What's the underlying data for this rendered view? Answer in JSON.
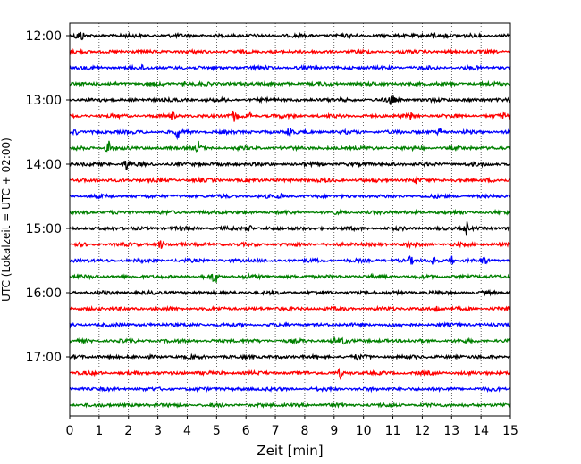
{
  "chart_data": {
    "type": "line",
    "title": "",
    "xlabel": "Zeit  [min]",
    "ylabel": "UTC (Lokalzeit = UTC + 02:00)",
    "xlim": [
      0,
      15
    ],
    "x_ticks": [
      "0",
      "1",
      "2",
      "3",
      "4",
      "5",
      "6",
      "7",
      "8",
      "9",
      "10",
      "11",
      "12",
      "13",
      "14",
      "15"
    ],
    "hour_labels": [
      "12:00",
      "13:00",
      "14:00",
      "15:00",
      "16:00",
      "17:00"
    ],
    "grid": "vertical-dotted",
    "trace_colors": [
      "#000000",
      "#ff0000",
      "#0000ff",
      "#008000"
    ],
    "row_interval_min": 15,
    "series": [
      {
        "row_start": "12:00",
        "color": "#000000",
        "events": [
          {
            "t": 0.25,
            "amp": 4
          },
          {
            "t": 0.4,
            "amp": 5
          },
          {
            "t": 12.4,
            "amp": 4
          },
          {
            "t": 12.8,
            "amp": 3
          }
        ]
      },
      {
        "row_start": "12:15",
        "color": "#ff0000",
        "events": []
      },
      {
        "row_start": "12:30",
        "color": "#0000ff",
        "events": [
          {
            "t": 2.5,
            "amp": 2
          }
        ]
      },
      {
        "row_start": "12:45",
        "color": "#008000",
        "events": [
          {
            "t": 3.9,
            "amp": 2
          }
        ]
      },
      {
        "row_start": "13:00",
        "color": "#000000",
        "events": [
          {
            "t": 10.9,
            "amp": 4
          },
          {
            "t": 11.0,
            "amp": 3
          }
        ]
      },
      {
        "row_start": "13:15",
        "color": "#ff0000",
        "events": [
          {
            "t": 3.5,
            "amp": 5
          },
          {
            "t": 5.6,
            "amp": 7
          },
          {
            "t": 6.1,
            "amp": 4
          },
          {
            "t": 11.6,
            "amp": 3
          },
          {
            "t": 14.8,
            "amp": 3
          }
        ]
      },
      {
        "row_start": "13:30",
        "color": "#0000ff",
        "events": [
          {
            "t": 0.2,
            "amp": 3
          },
          {
            "t": 3.7,
            "amp": 8
          },
          {
            "t": 7.5,
            "amp": 9
          },
          {
            "t": 12.6,
            "amp": 4
          }
        ]
      },
      {
        "row_start": "13:45",
        "color": "#008000",
        "events": [
          {
            "t": 1.3,
            "amp": 13
          },
          {
            "t": 4.4,
            "amp": 8
          }
        ]
      },
      {
        "row_start": "14:00",
        "color": "#000000",
        "events": [
          {
            "t": 1.9,
            "amp": 5
          },
          {
            "t": 2.0,
            "amp": 4
          }
        ]
      },
      {
        "row_start": "14:15",
        "color": "#ff0000",
        "events": [
          {
            "t": 11.8,
            "amp": 3
          }
        ]
      },
      {
        "row_start": "14:30",
        "color": "#0000ff",
        "events": [
          {
            "t": 7.2,
            "amp": 3
          }
        ]
      },
      {
        "row_start": "14:45",
        "color": "#008000",
        "events": []
      },
      {
        "row_start": "15:00",
        "color": "#000000",
        "events": [
          {
            "t": 6.1,
            "amp": 5
          },
          {
            "t": 13.5,
            "amp": 8
          }
        ]
      },
      {
        "row_start": "15:15",
        "color": "#ff0000",
        "events": [
          {
            "t": 3.1,
            "amp": 5
          },
          {
            "t": 11.5,
            "amp": 3
          }
        ]
      },
      {
        "row_start": "15:30",
        "color": "#0000ff",
        "events": [
          {
            "t": 11.6,
            "amp": 4
          },
          {
            "t": 12.4,
            "amp": 6
          },
          {
            "t": 13.0,
            "amp": 5
          },
          {
            "t": 14.1,
            "amp": 4
          }
        ]
      },
      {
        "row_start": "15:45",
        "color": "#008000",
        "events": [
          {
            "t": 4.9,
            "amp": 5
          },
          {
            "t": 5.0,
            "amp": 4
          },
          {
            "t": 6.0,
            "amp": 3
          }
        ]
      },
      {
        "row_start": "16:00",
        "color": "#000000",
        "events": []
      },
      {
        "row_start": "16:15",
        "color": "#ff0000",
        "events": [
          {
            "t": 12.5,
            "amp": 3
          }
        ]
      },
      {
        "row_start": "16:30",
        "color": "#0000ff",
        "events": []
      },
      {
        "row_start": "16:45",
        "color": "#008000",
        "events": [
          {
            "t": 9.0,
            "amp": 3
          },
          {
            "t": 9.3,
            "amp": 3
          }
        ]
      },
      {
        "row_start": "17:00",
        "color": "#000000",
        "events": [
          {
            "t": 9.8,
            "amp": 3
          }
        ]
      },
      {
        "row_start": "17:15",
        "color": "#ff0000",
        "events": [
          {
            "t": 9.2,
            "amp": 5
          }
        ]
      },
      {
        "row_start": "17:30",
        "color": "#0000ff",
        "events": []
      },
      {
        "row_start": "17:45",
        "color": "#008000",
        "events": []
      }
    ]
  }
}
